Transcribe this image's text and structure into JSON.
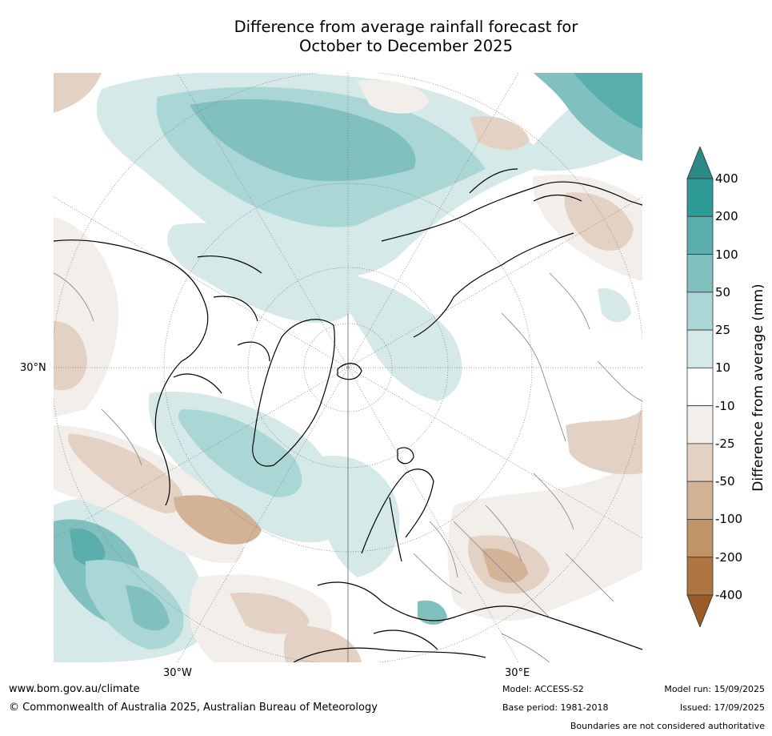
{
  "title": {
    "line1": "Difference from average rainfall forecast for",
    "line2": "October to December 2025"
  },
  "map": {
    "lat_label": "30°N",
    "lon_labels": {
      "west": "30°W",
      "east": "30°E"
    },
    "colors": {
      "ocean_bg": "#ffffff",
      "coast": "#000000",
      "border": "#808080",
      "grid": "#777777"
    }
  },
  "legend": {
    "title": "Difference from average (mm)",
    "ticks": [
      "400",
      "200",
      "100",
      "50",
      "25",
      "10",
      "-10",
      "-25",
      "-50",
      "-100",
      "-200",
      "-400"
    ],
    "bins": [
      {
        "color": "#2a8a86"
      },
      {
        "color": "#2f9b96"
      },
      {
        "color": "#5aaeac"
      },
      {
        "color": "#80c1bf"
      },
      {
        "color": "#aad7d5"
      },
      {
        "color": "#d4e9e8"
      },
      {
        "color": "#ffffff"
      },
      {
        "color": "#f2eeea"
      },
      {
        "color": "#e3d2c3"
      },
      {
        "color": "#d3b395"
      },
      {
        "color": "#c19468"
      },
      {
        "color": "#ae7642"
      },
      {
        "color": "#9a5c27"
      }
    ]
  },
  "footer": {
    "website": "www.bom.gov.au/climate",
    "copyright": "© Commonwealth of Australia 2025, Australian Bureau of Meteorology",
    "model": "Model: ACCESS-S2",
    "base_period": "Base period: 1981-2018",
    "model_run": "Model run: 15/09/2025",
    "issued": "Issued: 17/09/2025",
    "disclaimer": "Boundaries are not considered authoritative"
  }
}
